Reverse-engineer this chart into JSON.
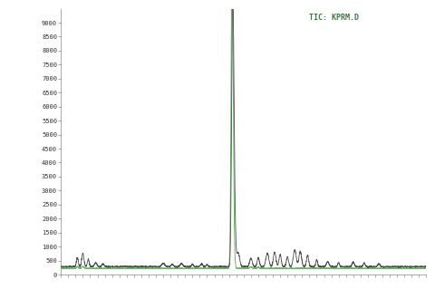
{
  "title": "TIC: KPRM.D",
  "title_color": "#3a7a3a",
  "bg_color": "#ffffff",
  "plot_bg": "#ffffff",
  "ylim": [
    0,
    9500
  ],
  "yticks": [
    0,
    500,
    1000,
    1500,
    2000,
    2500,
    3000,
    3500,
    4000,
    4500,
    5000,
    5500,
    6000,
    6500,
    7000,
    7500,
    8000,
    8500,
    9000
  ],
  "xlim": [
    0,
    100
  ],
  "line1_color": "#444444",
  "line2_color": "#5aaa5a",
  "baseline": 280
}
